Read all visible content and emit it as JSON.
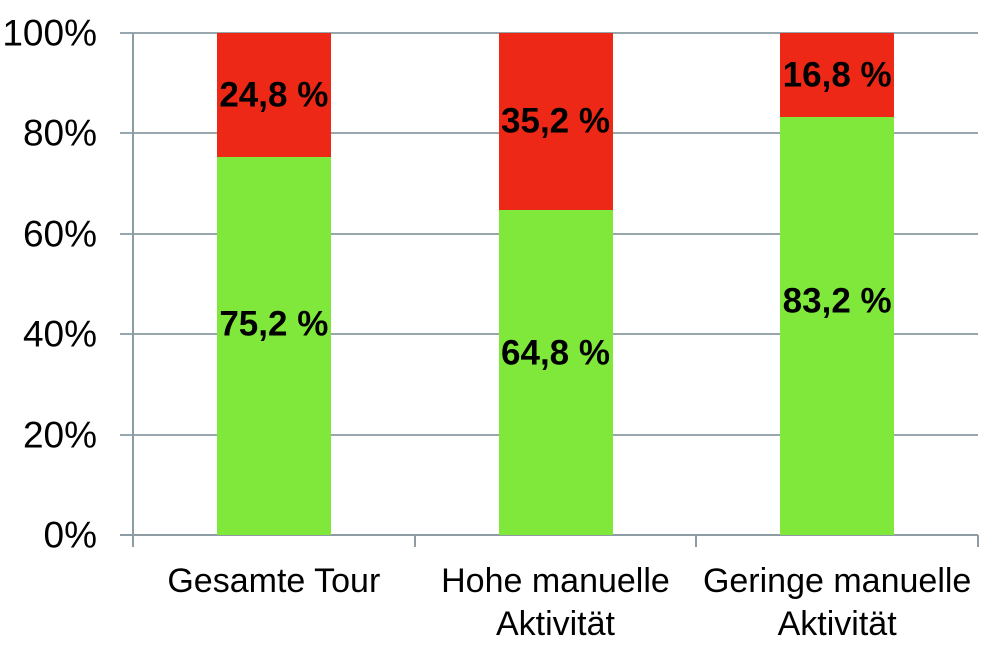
{
  "chart_data": {
    "type": "bar",
    "stacked": true,
    "title": "",
    "categories": [
      "Gesamte Tour",
      "Hohe manuelle Aktivität",
      "Geringe manuelle Aktivität"
    ],
    "series": [
      {
        "name": "green",
        "color": "#80e83b",
        "values": [
          75.2,
          64.8,
          83.2
        ],
        "labels": [
          "75,2 %",
          "64,8 %",
          "83,2 %"
        ]
      },
      {
        "name": "red",
        "color": "#ee2817",
        "values": [
          24.8,
          35.2,
          16.8
        ],
        "labels": [
          "24,8 %",
          "35,2 %",
          "16,8 %"
        ]
      }
    ],
    "y_axis": {
      "min": 0,
      "max": 100,
      "tick_values": [
        0,
        20,
        40,
        60,
        80,
        100
      ],
      "tick_labels": [
        "0%",
        "20%",
        "40%",
        "60%",
        "80%",
        "100%"
      ],
      "grid": true
    },
    "x_axis": {
      "tick_marks": true
    },
    "legend": "none",
    "colors": {
      "grid_line": "#98a6ae",
      "axis_line": "#8d9ba4",
      "text": "#000000",
      "background": "#ffffff"
    }
  }
}
